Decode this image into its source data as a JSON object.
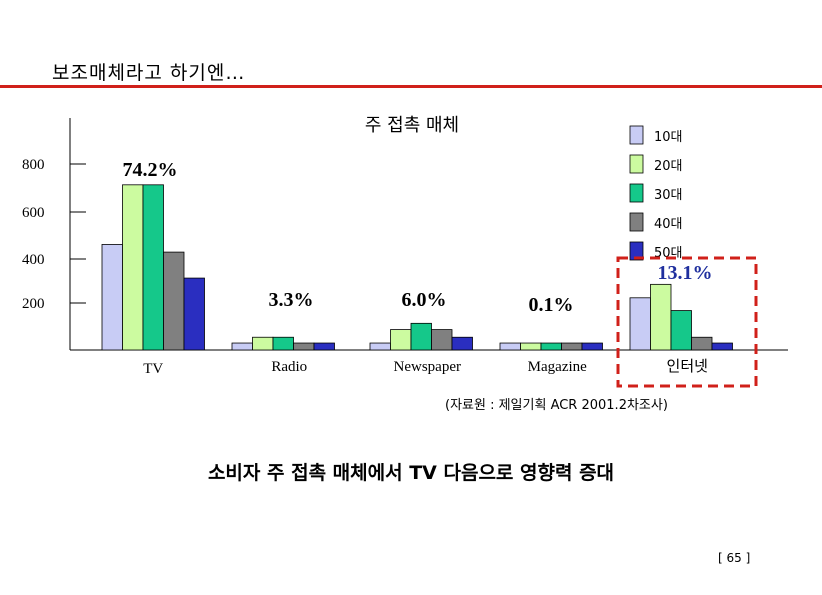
{
  "slide": {
    "title": "보조매체라고 하기엔…",
    "source": "(자료원 : 제일기획 ACR 2001.2차조사)",
    "conclusion": "소비자 주 접촉 매체에서 TV 다음으로 영향력 증대",
    "page_number": "[ 65 ]"
  },
  "colors": {
    "accent_rule": "#d0201a",
    "highlight_box": "#d0201a",
    "share_label_highlight": "#1f2f9e"
  },
  "chart_data": {
    "type": "bar",
    "title": "주 접촉 매체",
    "categories": [
      "TV",
      "Radio",
      "Newspaper",
      "Magazine",
      "인터넷"
    ],
    "series": [
      {
        "name": "10대",
        "color": "#c8ccf5",
        "values": [
          455,
          30,
          30,
          30,
          225
        ]
      },
      {
        "name": "20대",
        "color": "#ccfba0",
        "values": [
          712,
          55,
          88,
          30,
          283
        ]
      },
      {
        "name": "30대",
        "color": "#15c88a",
        "values": [
          712,
          55,
          115,
          30,
          170
        ]
      },
      {
        "name": "40대",
        "color": "#808080",
        "values": [
          422,
          30,
          88,
          30,
          55
        ]
      },
      {
        "name": "50대",
        "color": "#2a2ec0",
        "values": [
          310,
          30,
          55,
          30,
          30
        ]
      }
    ],
    "share_labels": [
      "74.2%",
      "3.3%",
      "6.0%",
      "0.1%",
      "13.1%"
    ],
    "highlighted_category": "인터넷",
    "y_ticks": [
      200,
      400,
      600,
      800
    ],
    "ylim": [
      0,
      1000
    ],
    "xlabel": "",
    "ylabel": "",
    "grid": false,
    "legend": "top-right"
  }
}
